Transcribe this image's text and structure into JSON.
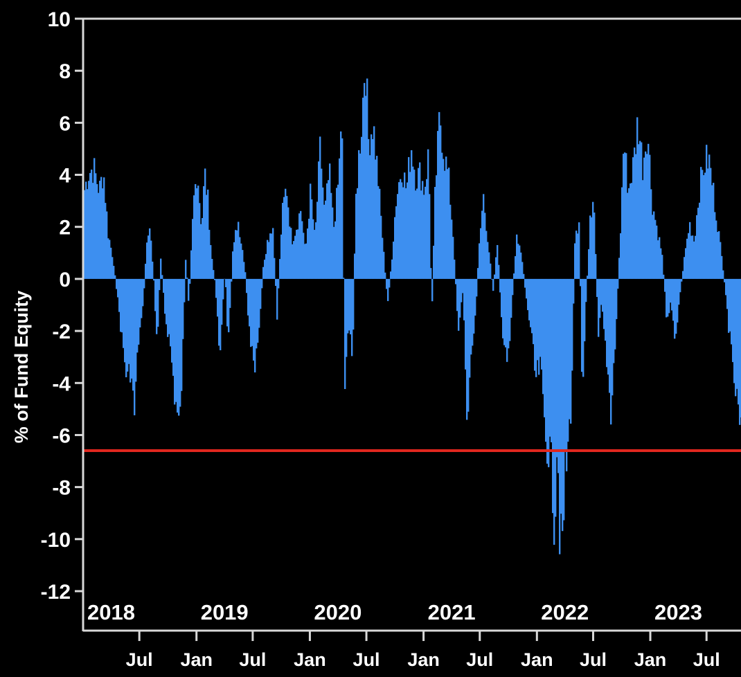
{
  "chart_data": {
    "type": "area",
    "ylabel": "% of Fund Equity",
    "ylim": [
      -12,
      10
    ],
    "yticks": [
      10,
      8,
      6,
      4,
      2,
      0,
      -2,
      -4,
      -6,
      -8,
      -10,
      -12
    ],
    "xlim": [
      "2018-01-01",
      "2023-10-20"
    ],
    "year_labels": [
      {
        "label": "2018",
        "date": "2018-01-01"
      },
      {
        "label": "2019",
        "date": "2019-01-01"
      },
      {
        "label": "2020",
        "date": "2020-01-01"
      },
      {
        "label": "2021",
        "date": "2021-01-01"
      },
      {
        "label": "2022",
        "date": "2022-01-01"
      },
      {
        "label": "2023",
        "date": "2023-01-01"
      }
    ],
    "month_labels": [
      {
        "label": "Jul",
        "date": "2018-07-01"
      },
      {
        "label": "Jan",
        "date": "2019-01-01"
      },
      {
        "label": "Jul",
        "date": "2019-07-01"
      },
      {
        "label": "Jan",
        "date": "2020-01-01"
      },
      {
        "label": "Jul",
        "date": "2020-07-01"
      },
      {
        "label": "Jan",
        "date": "2021-01-01"
      },
      {
        "label": "Jul",
        "date": "2021-07-01"
      },
      {
        "label": "Jan",
        "date": "2022-01-01"
      },
      {
        "label": "Jul",
        "date": "2022-07-01"
      },
      {
        "label": "Jan",
        "date": "2023-01-01"
      },
      {
        "label": "Jul",
        "date": "2023-07-01"
      }
    ],
    "reference_line": {
      "value": -6.6,
      "color": "#e0271f"
    },
    "series": [
      {
        "color": "#3d8ff0",
        "points": [
          [
            "2018-01-01",
            3.4
          ],
          [
            "2018-01-15",
            4.2
          ],
          [
            "2018-02-01",
            4.4
          ],
          [
            "2018-02-20",
            3.5
          ],
          [
            "2018-03-05",
            4.3
          ],
          [
            "2018-03-20",
            1.8
          ],
          [
            "2018-04-05",
            0.8
          ],
          [
            "2018-04-20",
            -0.8
          ],
          [
            "2018-05-05",
            -2.5
          ],
          [
            "2018-05-20",
            -4.0
          ],
          [
            "2018-06-01",
            -3.5
          ],
          [
            "2018-06-12",
            -5.5
          ],
          [
            "2018-06-25",
            -2.5
          ],
          [
            "2018-07-10",
            -1.2
          ],
          [
            "2018-07-20",
            1.0
          ],
          [
            "2018-08-01",
            2.2
          ],
          [
            "2018-08-15",
            -0.2
          ],
          [
            "2018-08-25",
            -3.0
          ],
          [
            "2018-09-05",
            1.0
          ],
          [
            "2018-09-20",
            -1.5
          ],
          [
            "2018-10-05",
            -2.5
          ],
          [
            "2018-10-20",
            -4.5
          ],
          [
            "2018-11-05",
            -6.1
          ],
          [
            "2018-11-15",
            -3.0
          ],
          [
            "2018-11-25",
            0.8
          ],
          [
            "2018-12-05",
            -1.0
          ],
          [
            "2018-12-20",
            3.0
          ],
          [
            "2019-01-01",
            4.4
          ],
          [
            "2019-01-15",
            2.0
          ],
          [
            "2019-01-25",
            4.2
          ],
          [
            "2019-02-05",
            3.0
          ],
          [
            "2019-02-15",
            1.0
          ],
          [
            "2019-03-01",
            -0.3
          ],
          [
            "2019-03-15",
            -3.0
          ],
          [
            "2019-04-01",
            0.5
          ],
          [
            "2019-04-10",
            -3.0
          ],
          [
            "2019-04-25",
            1.0
          ],
          [
            "2019-05-10",
            2.2
          ],
          [
            "2019-05-25",
            1.5
          ],
          [
            "2019-06-05",
            0.2
          ],
          [
            "2019-06-20",
            -2.5
          ],
          [
            "2019-07-05",
            -3.8
          ],
          [
            "2019-07-20",
            -2.0
          ],
          [
            "2019-08-01",
            0.5
          ],
          [
            "2019-08-15",
            1.5
          ],
          [
            "2019-09-01",
            2.2
          ],
          [
            "2019-09-15",
            -1.5
          ],
          [
            "2019-10-01",
            2.5
          ],
          [
            "2019-10-15",
            3.7
          ],
          [
            "2019-11-01",
            1.5
          ],
          [
            "2019-11-15",
            2.0
          ],
          [
            "2019-12-01",
            2.8
          ],
          [
            "2019-12-15",
            1.0
          ],
          [
            "2020-01-01",
            3.5
          ],
          [
            "2020-01-15",
            1.5
          ],
          [
            "2020-02-01",
            5.2
          ],
          [
            "2020-02-15",
            2.5
          ],
          [
            "2020-03-01",
            4.2
          ],
          [
            "2020-03-15",
            2.0
          ],
          [
            "2020-04-01",
            4.0
          ],
          [
            "2020-04-10",
            7.0
          ],
          [
            "2020-04-20",
            -4.5
          ],
          [
            "2020-05-01",
            -1.5
          ],
          [
            "2020-05-15",
            -3.5
          ],
          [
            "2020-05-25",
            3.0
          ],
          [
            "2020-06-05",
            5.0
          ],
          [
            "2020-06-15",
            6.5
          ],
          [
            "2020-06-25",
            9.0
          ],
          [
            "2020-07-05",
            5.5
          ],
          [
            "2020-07-20",
            6.2
          ],
          [
            "2020-08-05",
            4.0
          ],
          [
            "2020-08-20",
            1.5
          ],
          [
            "2020-09-05",
            -1.0
          ],
          [
            "2020-09-20",
            1.0
          ],
          [
            "2020-10-01",
            3.0
          ],
          [
            "2020-10-20",
            4.5
          ],
          [
            "2020-11-05",
            3.5
          ],
          [
            "2020-11-20",
            5.3
          ],
          [
            "2020-12-05",
            4.0
          ],
          [
            "2020-12-20",
            4.2
          ],
          [
            "2021-01-01",
            3.5
          ],
          [
            "2021-01-15",
            5.0
          ],
          [
            "2021-01-25",
            -1.5
          ],
          [
            "2021-02-05",
            3.5
          ],
          [
            "2021-02-20",
            6.5
          ],
          [
            "2021-03-05",
            5.0
          ],
          [
            "2021-03-20",
            4.0
          ],
          [
            "2021-04-05",
            1.5
          ],
          [
            "2021-04-20",
            -2.0
          ],
          [
            "2021-05-05",
            -0.5
          ],
          [
            "2021-05-20",
            -5.6
          ],
          [
            "2021-06-01",
            -3.0
          ],
          [
            "2021-06-15",
            -1.5
          ],
          [
            "2021-06-25",
            1.0
          ],
          [
            "2021-07-10",
            3.3
          ],
          [
            "2021-07-25",
            1.5
          ],
          [
            "2021-08-10",
            -0.5
          ],
          [
            "2021-08-25",
            1.5
          ],
          [
            "2021-09-10",
            -2.5
          ],
          [
            "2021-09-25",
            -3.5
          ],
          [
            "2021-10-10",
            -1.0
          ],
          [
            "2021-10-25",
            1.8
          ],
          [
            "2021-11-10",
            1.0
          ],
          [
            "2021-11-25",
            -0.8
          ],
          [
            "2021-12-10",
            -2.0
          ],
          [
            "2021-12-25",
            -4.0
          ],
          [
            "2022-01-10",
            -3.5
          ],
          [
            "2022-01-25",
            -6.0
          ],
          [
            "2022-02-10",
            -7.0
          ],
          [
            "2022-02-25",
            -9.5
          ],
          [
            "2022-03-05",
            -6.0
          ],
          [
            "2022-03-15",
            -10.8
          ],
          [
            "2022-03-20",
            -11.1
          ],
          [
            "2022-03-30",
            -8.0
          ],
          [
            "2022-04-10",
            -6.5
          ],
          [
            "2022-04-20",
            -4.5
          ],
          [
            "2022-05-01",
            1.5
          ],
          [
            "2022-05-15",
            2.5
          ],
          [
            "2022-05-25",
            -5.5
          ],
          [
            "2022-06-05",
            -1.0
          ],
          [
            "2022-06-20",
            2.5
          ],
          [
            "2022-07-01",
            3.5
          ],
          [
            "2022-07-15",
            -2.5
          ],
          [
            "2022-07-25",
            -1.0
          ],
          [
            "2022-08-10",
            -3.0
          ],
          [
            "2022-08-25",
            -5.2
          ],
          [
            "2022-09-10",
            -2.0
          ],
          [
            "2022-09-25",
            2.0
          ],
          [
            "2022-10-05",
            5.5
          ],
          [
            "2022-10-20",
            3.5
          ],
          [
            "2022-11-05",
            4.5
          ],
          [
            "2022-11-20",
            6.3
          ],
          [
            "2022-12-05",
            4.5
          ],
          [
            "2022-12-20",
            6.0
          ],
          [
            "2023-01-05",
            3.0
          ],
          [
            "2023-01-20",
            2.0
          ],
          [
            "2023-02-05",
            1.0
          ],
          [
            "2023-02-20",
            -1.5
          ],
          [
            "2023-03-05",
            -1.0
          ],
          [
            "2023-03-20",
            -2.3
          ],
          [
            "2023-04-05",
            -0.5
          ],
          [
            "2023-04-20",
            1.0
          ],
          [
            "2023-05-05",
            2.2
          ],
          [
            "2023-05-20",
            1.5
          ],
          [
            "2023-06-05",
            3.5
          ],
          [
            "2023-06-20",
            4.5
          ],
          [
            "2023-07-05",
            4.8
          ],
          [
            "2023-07-20",
            3.5
          ],
          [
            "2023-08-05",
            2.0
          ],
          [
            "2023-08-20",
            0.5
          ],
          [
            "2023-09-05",
            -1.5
          ],
          [
            "2023-09-20",
            -3.5
          ],
          [
            "2023-10-05",
            -5.0
          ],
          [
            "2023-10-20",
            -6.5
          ]
        ]
      }
    ]
  }
}
